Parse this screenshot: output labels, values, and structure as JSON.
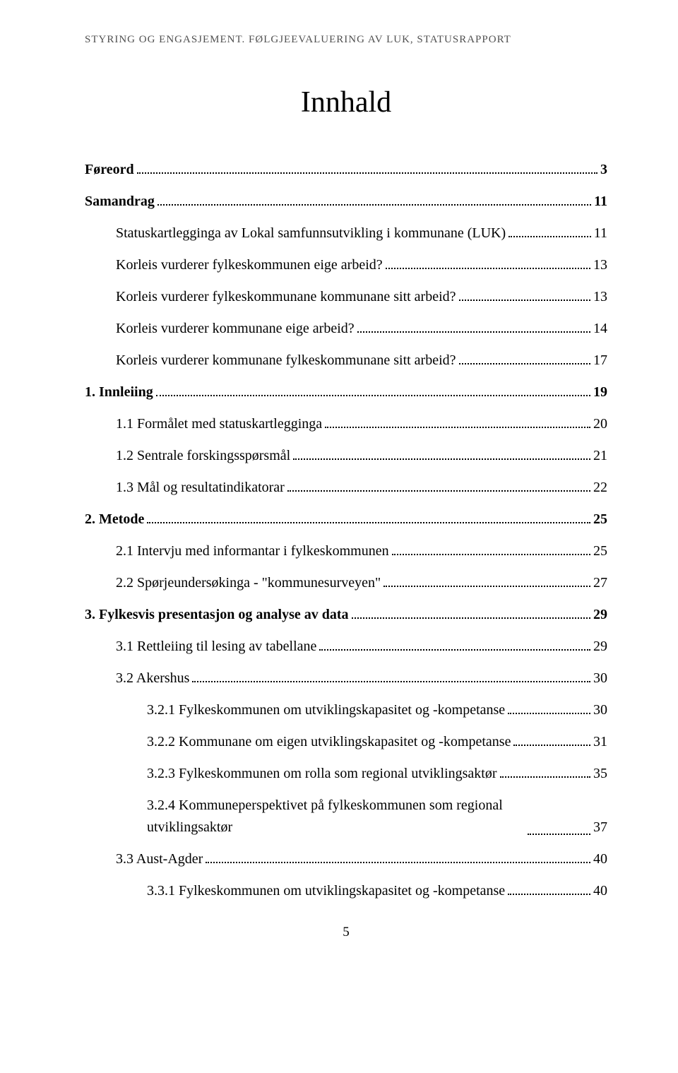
{
  "header": "STYRING OG ENGASJEMENT. FØLGJEEVALUERING AV LUK, STATUSRAPPORT",
  "title": "Innhald",
  "entries": [
    {
      "label": "Føreord",
      "page": "3",
      "bold": true,
      "indent": 0
    },
    {
      "label": "Samandrag",
      "page": "11",
      "bold": true,
      "indent": 0
    },
    {
      "label": "Statuskartlegginga av Lokal samfunnsutvikling i kommunane (LUK)",
      "page": "11",
      "bold": false,
      "indent": 1
    },
    {
      "label": "Korleis vurderer fylkeskommunen eige arbeid?",
      "page": "13",
      "bold": false,
      "indent": 1
    },
    {
      "label": "Korleis vurderer fylkeskommunane kommunane sitt arbeid?",
      "page": "13",
      "bold": false,
      "indent": 1
    },
    {
      "label": "Korleis vurderer kommunane eige arbeid?",
      "page": "14",
      "bold": false,
      "indent": 1
    },
    {
      "label": "Korleis vurderer kommunane fylkeskommunane sitt arbeid?",
      "page": "17",
      "bold": false,
      "indent": 1
    },
    {
      "label": "1.   Innleiing",
      "page": "19",
      "bold": true,
      "indent": 0
    },
    {
      "label": "1.1   Formålet med statuskartlegginga",
      "page": "20",
      "bold": false,
      "indent": 1
    },
    {
      "label": "1.2   Sentrale forskingsspørsmål",
      "page": "21",
      "bold": false,
      "indent": 1
    },
    {
      "label": "1.3   Mål og resultatindikatorar",
      "page": "22",
      "bold": false,
      "indent": 1
    },
    {
      "label": "2.   Metode",
      "page": "25",
      "bold": true,
      "indent": 0
    },
    {
      "label": "2.1   Intervju med informantar i fylkeskommunen",
      "page": "25",
      "bold": false,
      "indent": 1
    },
    {
      "label": "2.2   Spørjeundersøkinga - \"kommunesurveyen\"",
      "page": "27",
      "bold": false,
      "indent": 1
    },
    {
      "label": "3.   Fylkesvis presentasjon og analyse av data",
      "page": "29",
      "bold": true,
      "indent": 0
    },
    {
      "label": "3.1   Rettleiing til lesing av tabellane",
      "page": "29",
      "bold": false,
      "indent": 1
    },
    {
      "label": "3.2   Akershus",
      "page": "30",
      "bold": false,
      "indent": 1
    },
    {
      "label": "3.2.1   Fylkeskommunen om utviklingskapasitet og -kompetanse",
      "page": "30",
      "bold": false,
      "indent": 2
    },
    {
      "label": "3.2.2   Kommunane om eigen utviklingskapasitet og -kompetanse",
      "page": "31",
      "bold": false,
      "indent": 2
    },
    {
      "label": "3.2.3   Fylkeskommunen om rolla som regional utviklingsaktør",
      "page": "35",
      "bold": false,
      "indent": 2
    },
    {
      "label": "3.2.4   Kommuneperspektivet på fylkeskommunen som regional utviklingsaktør",
      "page": "37",
      "bold": false,
      "indent": 2,
      "multiline": true
    },
    {
      "label": "3.3   Aust-Agder",
      "page": "40",
      "bold": false,
      "indent": 1
    },
    {
      "label": "3.3.1   Fylkeskommunen om utviklingskapasitet og -kompetanse",
      "page": "40",
      "bold": false,
      "indent": 2
    }
  ],
  "footer_page": "5"
}
